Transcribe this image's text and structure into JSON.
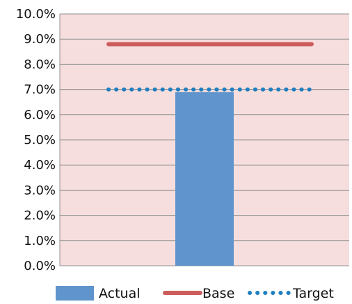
{
  "chart_data": {
    "type": "bar",
    "categories": [
      ""
    ],
    "ylim": [
      0,
      10
    ],
    "y_ticks": [
      "0.0%",
      "1.0%",
      "2.0%",
      "3.0%",
      "4.0%",
      "5.0%",
      "6.0%",
      "7.0%",
      "8.0%",
      "9.0%",
      "10.0%"
    ],
    "series": [
      {
        "name": "Actual",
        "type": "bar",
        "values": [
          6.9
        ],
        "color": "#5f95cc"
      },
      {
        "name": "Base",
        "type": "line",
        "values": [
          8.8
        ],
        "color": "#cd5c5c",
        "style": "solid"
      },
      {
        "name": "Target",
        "type": "line",
        "values": [
          7.0
        ],
        "color": "#1f7fc0",
        "style": "dotted"
      }
    ],
    "plot_background": "#f6dede",
    "gridlines": true,
    "legend_position": "bottom"
  }
}
